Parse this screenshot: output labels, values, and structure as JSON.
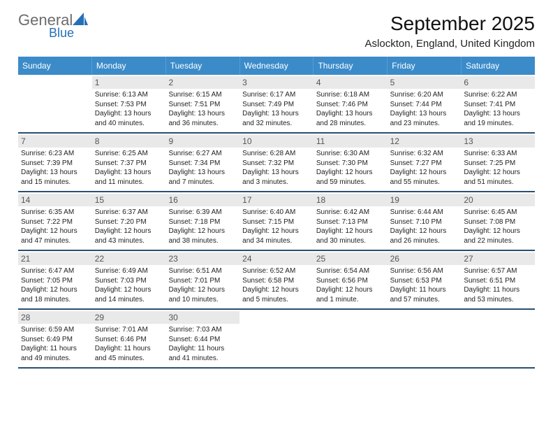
{
  "brand": {
    "word1": "General",
    "word2": "Blue"
  },
  "title": "September 2025",
  "location": "Aslockton, England, United Kingdom",
  "colors": {
    "header_bg": "#3b8bc9",
    "week_divider": "#294f70",
    "daynum_bg": "#e9e9e9"
  },
  "weekday_headers": [
    "Sunday",
    "Monday",
    "Tuesday",
    "Wednesday",
    "Thursday",
    "Friday",
    "Saturday"
  ],
  "weeks": [
    [
      {
        "blank": true
      },
      {
        "n": "1",
        "sunrise": "6:13 AM",
        "sunset": "7:53 PM",
        "daylight": "13 hours and 40 minutes."
      },
      {
        "n": "2",
        "sunrise": "6:15 AM",
        "sunset": "7:51 PM",
        "daylight": "13 hours and 36 minutes."
      },
      {
        "n": "3",
        "sunrise": "6:17 AM",
        "sunset": "7:49 PM",
        "daylight": "13 hours and 32 minutes."
      },
      {
        "n": "4",
        "sunrise": "6:18 AM",
        "sunset": "7:46 PM",
        "daylight": "13 hours and 28 minutes."
      },
      {
        "n": "5",
        "sunrise": "6:20 AM",
        "sunset": "7:44 PM",
        "daylight": "13 hours and 23 minutes."
      },
      {
        "n": "6",
        "sunrise": "6:22 AM",
        "sunset": "7:41 PM",
        "daylight": "13 hours and 19 minutes."
      }
    ],
    [
      {
        "n": "7",
        "sunrise": "6:23 AM",
        "sunset": "7:39 PM",
        "daylight": "13 hours and 15 minutes."
      },
      {
        "n": "8",
        "sunrise": "6:25 AM",
        "sunset": "7:37 PM",
        "daylight": "13 hours and 11 minutes."
      },
      {
        "n": "9",
        "sunrise": "6:27 AM",
        "sunset": "7:34 PM",
        "daylight": "13 hours and 7 minutes."
      },
      {
        "n": "10",
        "sunrise": "6:28 AM",
        "sunset": "7:32 PM",
        "daylight": "13 hours and 3 minutes."
      },
      {
        "n": "11",
        "sunrise": "6:30 AM",
        "sunset": "7:30 PM",
        "daylight": "12 hours and 59 minutes."
      },
      {
        "n": "12",
        "sunrise": "6:32 AM",
        "sunset": "7:27 PM",
        "daylight": "12 hours and 55 minutes."
      },
      {
        "n": "13",
        "sunrise": "6:33 AM",
        "sunset": "7:25 PM",
        "daylight": "12 hours and 51 minutes."
      }
    ],
    [
      {
        "n": "14",
        "sunrise": "6:35 AM",
        "sunset": "7:22 PM",
        "daylight": "12 hours and 47 minutes."
      },
      {
        "n": "15",
        "sunrise": "6:37 AM",
        "sunset": "7:20 PM",
        "daylight": "12 hours and 43 minutes."
      },
      {
        "n": "16",
        "sunrise": "6:39 AM",
        "sunset": "7:18 PM",
        "daylight": "12 hours and 38 minutes."
      },
      {
        "n": "17",
        "sunrise": "6:40 AM",
        "sunset": "7:15 PM",
        "daylight": "12 hours and 34 minutes."
      },
      {
        "n": "18",
        "sunrise": "6:42 AM",
        "sunset": "7:13 PM",
        "daylight": "12 hours and 30 minutes."
      },
      {
        "n": "19",
        "sunrise": "6:44 AM",
        "sunset": "7:10 PM",
        "daylight": "12 hours and 26 minutes."
      },
      {
        "n": "20",
        "sunrise": "6:45 AM",
        "sunset": "7:08 PM",
        "daylight": "12 hours and 22 minutes."
      }
    ],
    [
      {
        "n": "21",
        "sunrise": "6:47 AM",
        "sunset": "7:05 PM",
        "daylight": "12 hours and 18 minutes."
      },
      {
        "n": "22",
        "sunrise": "6:49 AM",
        "sunset": "7:03 PM",
        "daylight": "12 hours and 14 minutes."
      },
      {
        "n": "23",
        "sunrise": "6:51 AM",
        "sunset": "7:01 PM",
        "daylight": "12 hours and 10 minutes."
      },
      {
        "n": "24",
        "sunrise": "6:52 AM",
        "sunset": "6:58 PM",
        "daylight": "12 hours and 5 minutes."
      },
      {
        "n": "25",
        "sunrise": "6:54 AM",
        "sunset": "6:56 PM",
        "daylight": "12 hours and 1 minute."
      },
      {
        "n": "26",
        "sunrise": "6:56 AM",
        "sunset": "6:53 PM",
        "daylight": "11 hours and 57 minutes."
      },
      {
        "n": "27",
        "sunrise": "6:57 AM",
        "sunset": "6:51 PM",
        "daylight": "11 hours and 53 minutes."
      }
    ],
    [
      {
        "n": "28",
        "sunrise": "6:59 AM",
        "sunset": "6:49 PM",
        "daylight": "11 hours and 49 minutes."
      },
      {
        "n": "29",
        "sunrise": "7:01 AM",
        "sunset": "6:46 PM",
        "daylight": "11 hours and 45 minutes."
      },
      {
        "n": "30",
        "sunrise": "7:03 AM",
        "sunset": "6:44 PM",
        "daylight": "11 hours and 41 minutes."
      },
      {
        "blank": true
      },
      {
        "blank": true
      },
      {
        "blank": true
      },
      {
        "blank": true
      }
    ]
  ],
  "labels": {
    "sunrise_prefix": "Sunrise: ",
    "sunset_prefix": "Sunset: ",
    "daylight_prefix": "Daylight: "
  }
}
